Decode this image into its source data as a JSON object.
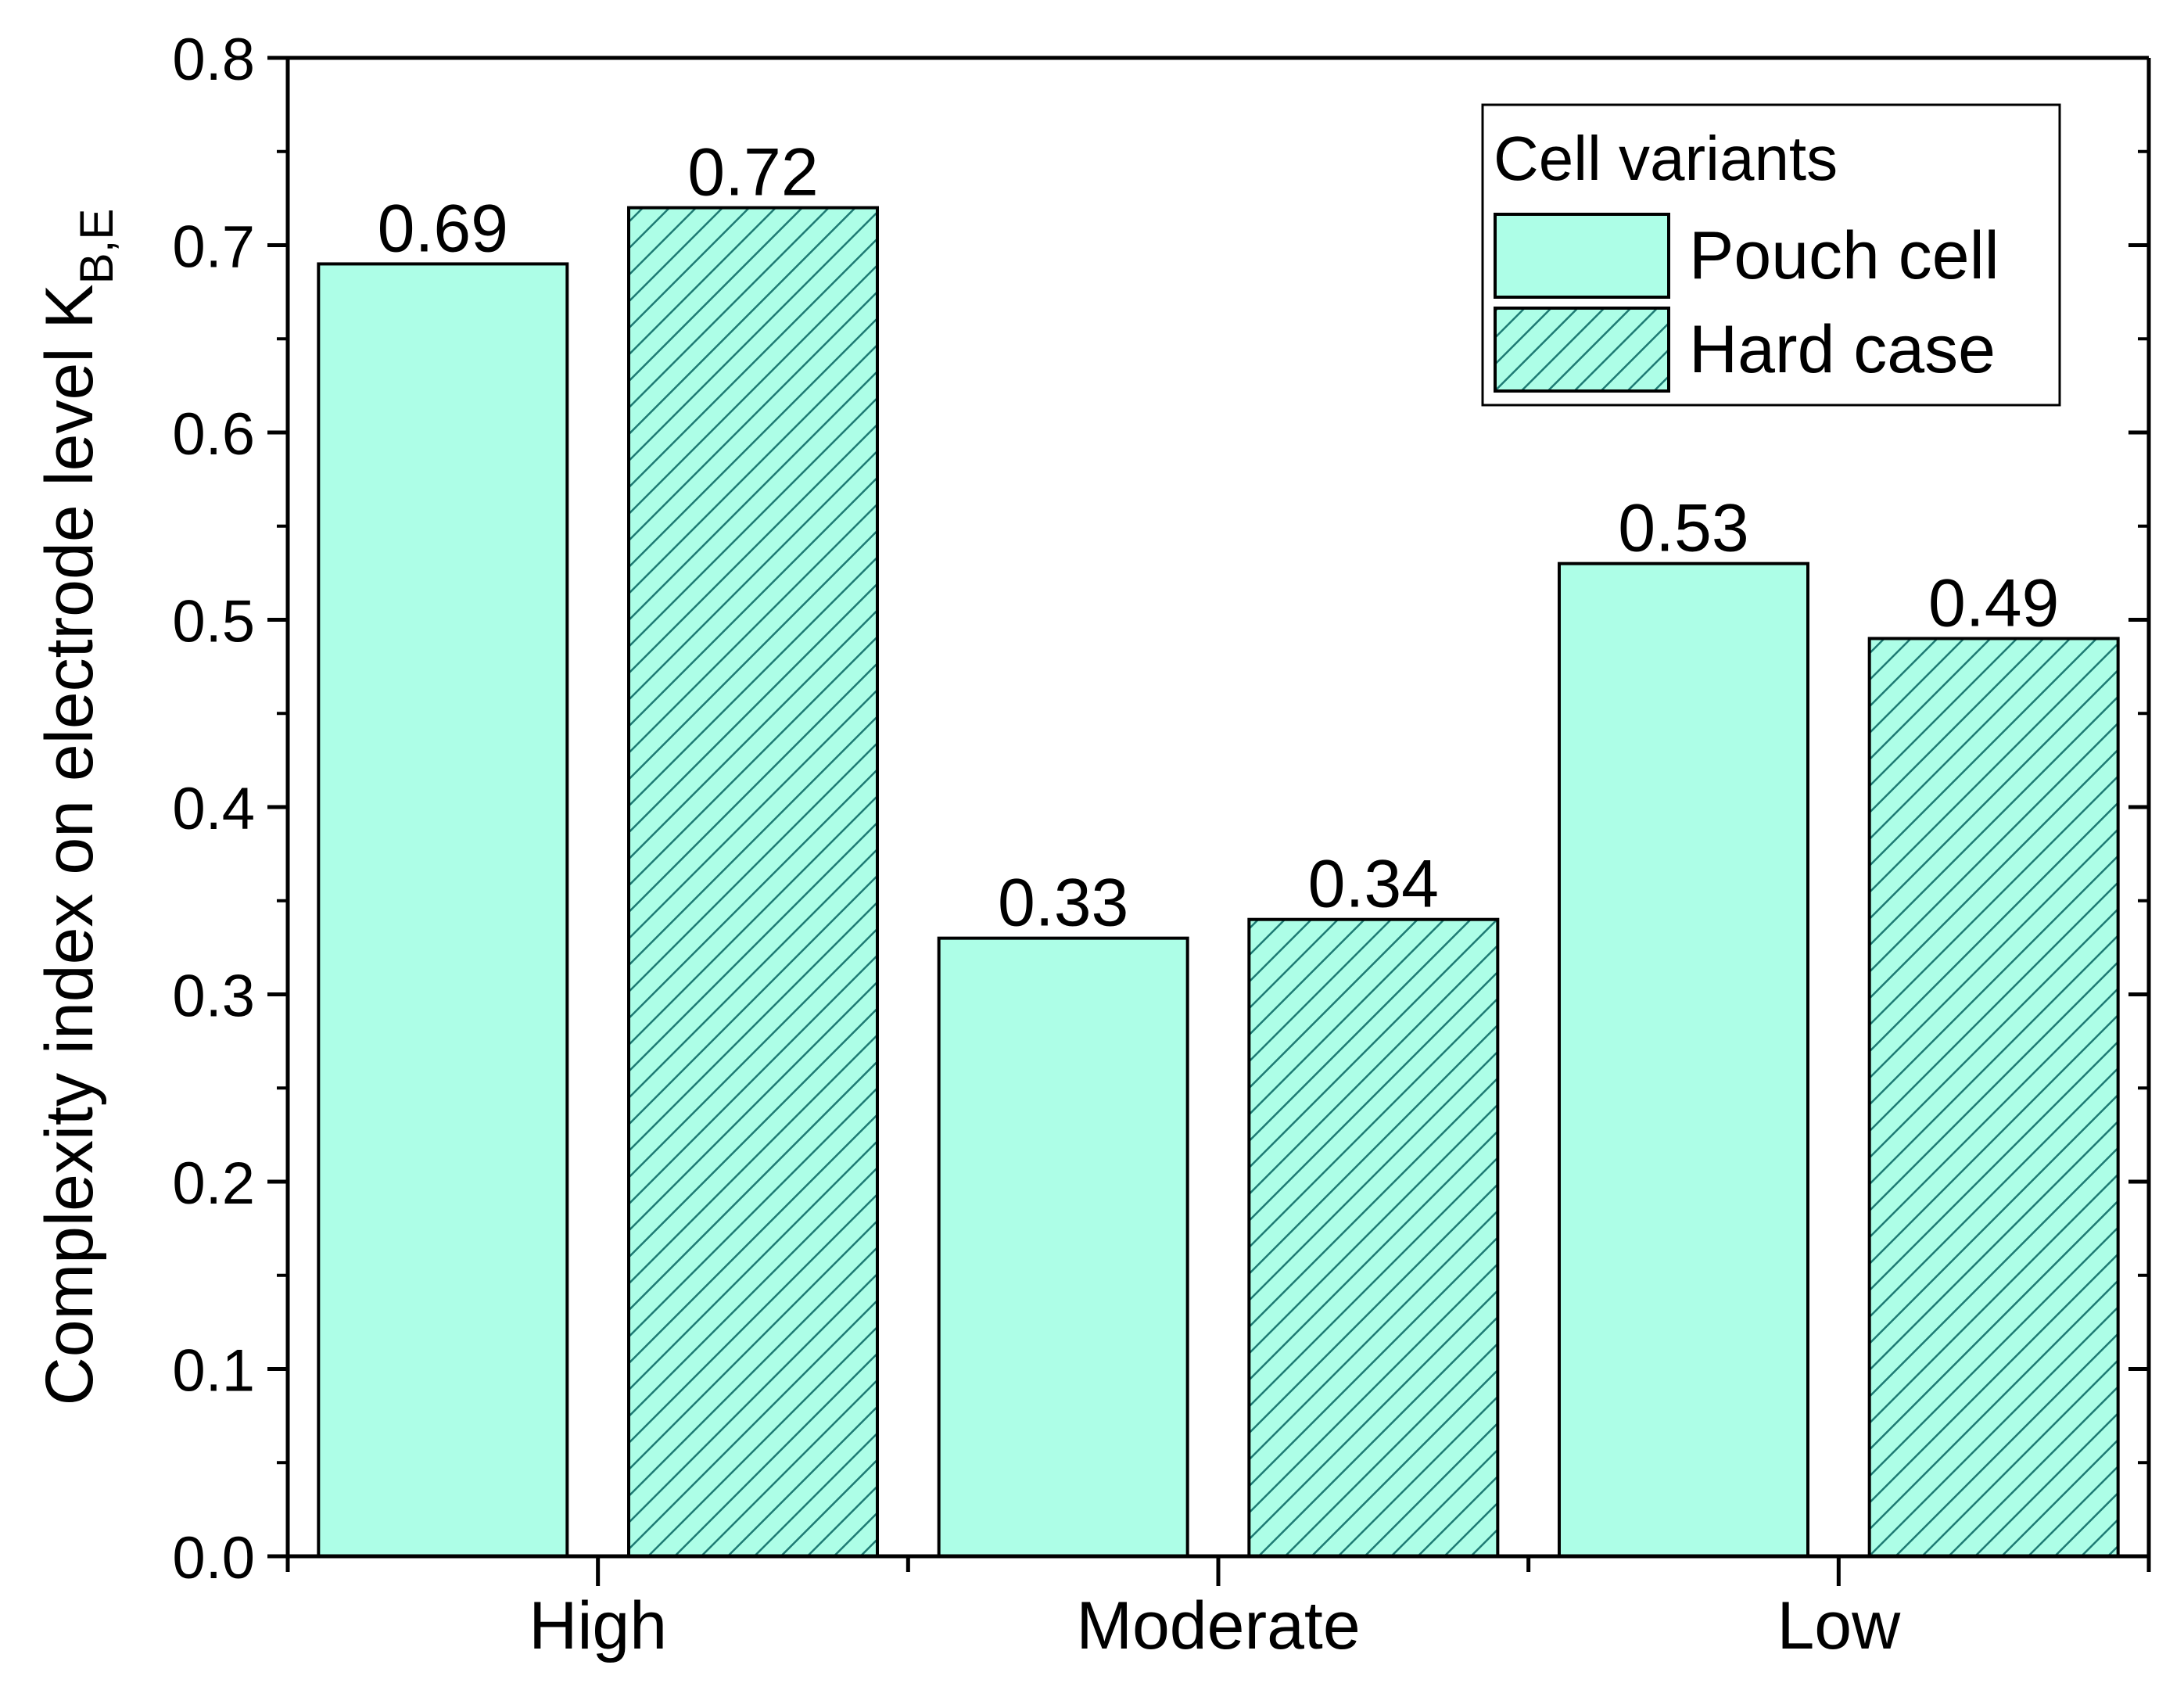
{
  "chart_data": {
    "type": "bar",
    "categories": [
      "High",
      "Moderate",
      "Low"
    ],
    "series": [
      {
        "name": "Pouch cell",
        "values": [
          0.69,
          0.33,
          0.53
        ],
        "pattern": "solid"
      },
      {
        "name": "Hard case",
        "values": [
          0.72,
          0.34,
          0.49
        ],
        "pattern": "hatched"
      }
    ],
    "data_labels": [
      [
        "0.69",
        "0.33",
        "0.53"
      ],
      [
        "0.72",
        "0.34",
        "0.49"
      ]
    ],
    "ylabel_main": "Complexity index on electrode level K",
    "ylabel_sub": "B,E",
    "xlabel": "",
    "ylim": [
      0,
      0.8
    ],
    "yticks": [
      "0.0",
      "0.1",
      "0.2",
      "0.3",
      "0.4",
      "0.5",
      "0.6",
      "0.7",
      "0.8"
    ],
    "legend": {
      "title": "Cell variants",
      "placement": "top-right"
    },
    "grid": false
  },
  "colors": {
    "fill": "#adfee7",
    "hatch": "#1e7b74",
    "stroke": "#000000",
    "background": "#ffffff"
  }
}
